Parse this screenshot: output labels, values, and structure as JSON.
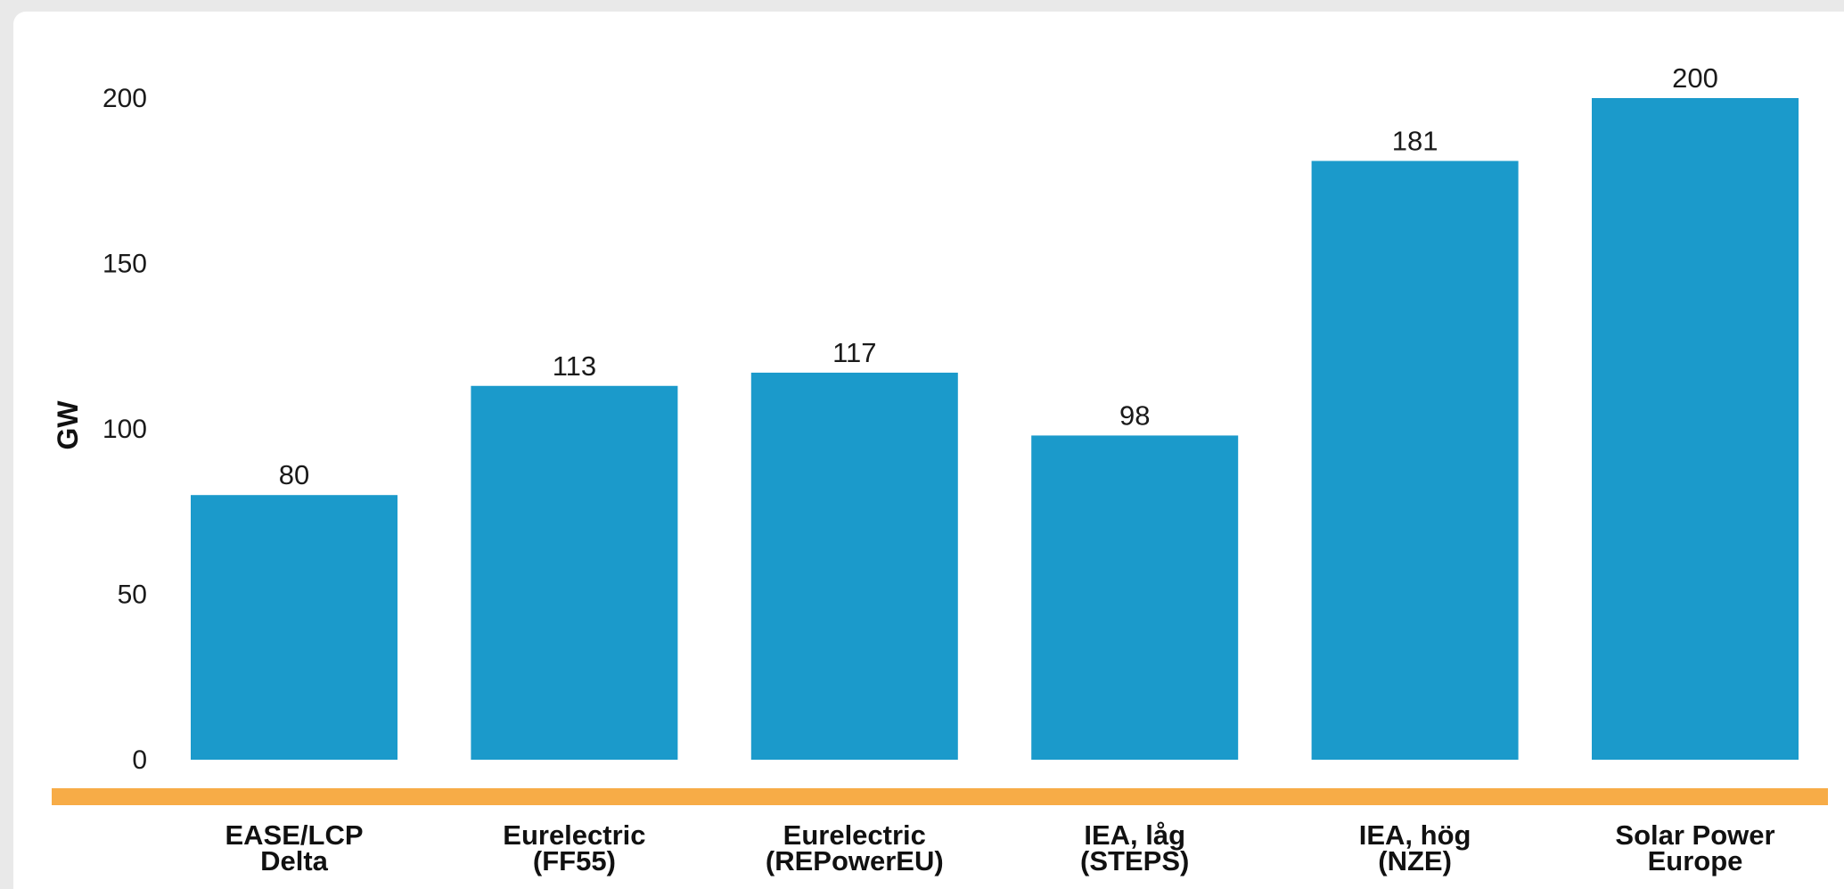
{
  "colors": {
    "background": "#e9e9e9",
    "card": "#ffffff",
    "bar": "#1b9acb",
    "baseline_band": "#f7ac47",
    "text": "#1a1a1a"
  },
  "chart_data": {
    "type": "bar",
    "categories": [
      [
        "EASE/LCP",
        "Delta"
      ],
      [
        "Eurelectric",
        "(FF55)"
      ],
      [
        "Eurelectric",
        "(REPowerEU)"
      ],
      [
        "IEA, låg",
        "(STEPS)"
      ],
      [
        "IEA, hög",
        "(NZE)"
      ],
      [
        "Solar Power",
        "Europe"
      ]
    ],
    "values": [
      80,
      113,
      117,
      98,
      181,
      200
    ],
    "data_labels": [
      "80",
      "113",
      "117",
      "98",
      "181",
      "200"
    ],
    "ylabel": "GW",
    "xlabel": "",
    "title": "",
    "ylim": [
      0,
      210
    ],
    "yticks": [
      0,
      50,
      100,
      150,
      200
    ],
    "ytick_labels": [
      "0",
      "50",
      "100",
      "150",
      "200"
    ],
    "grid": false,
    "legend": "none"
  }
}
